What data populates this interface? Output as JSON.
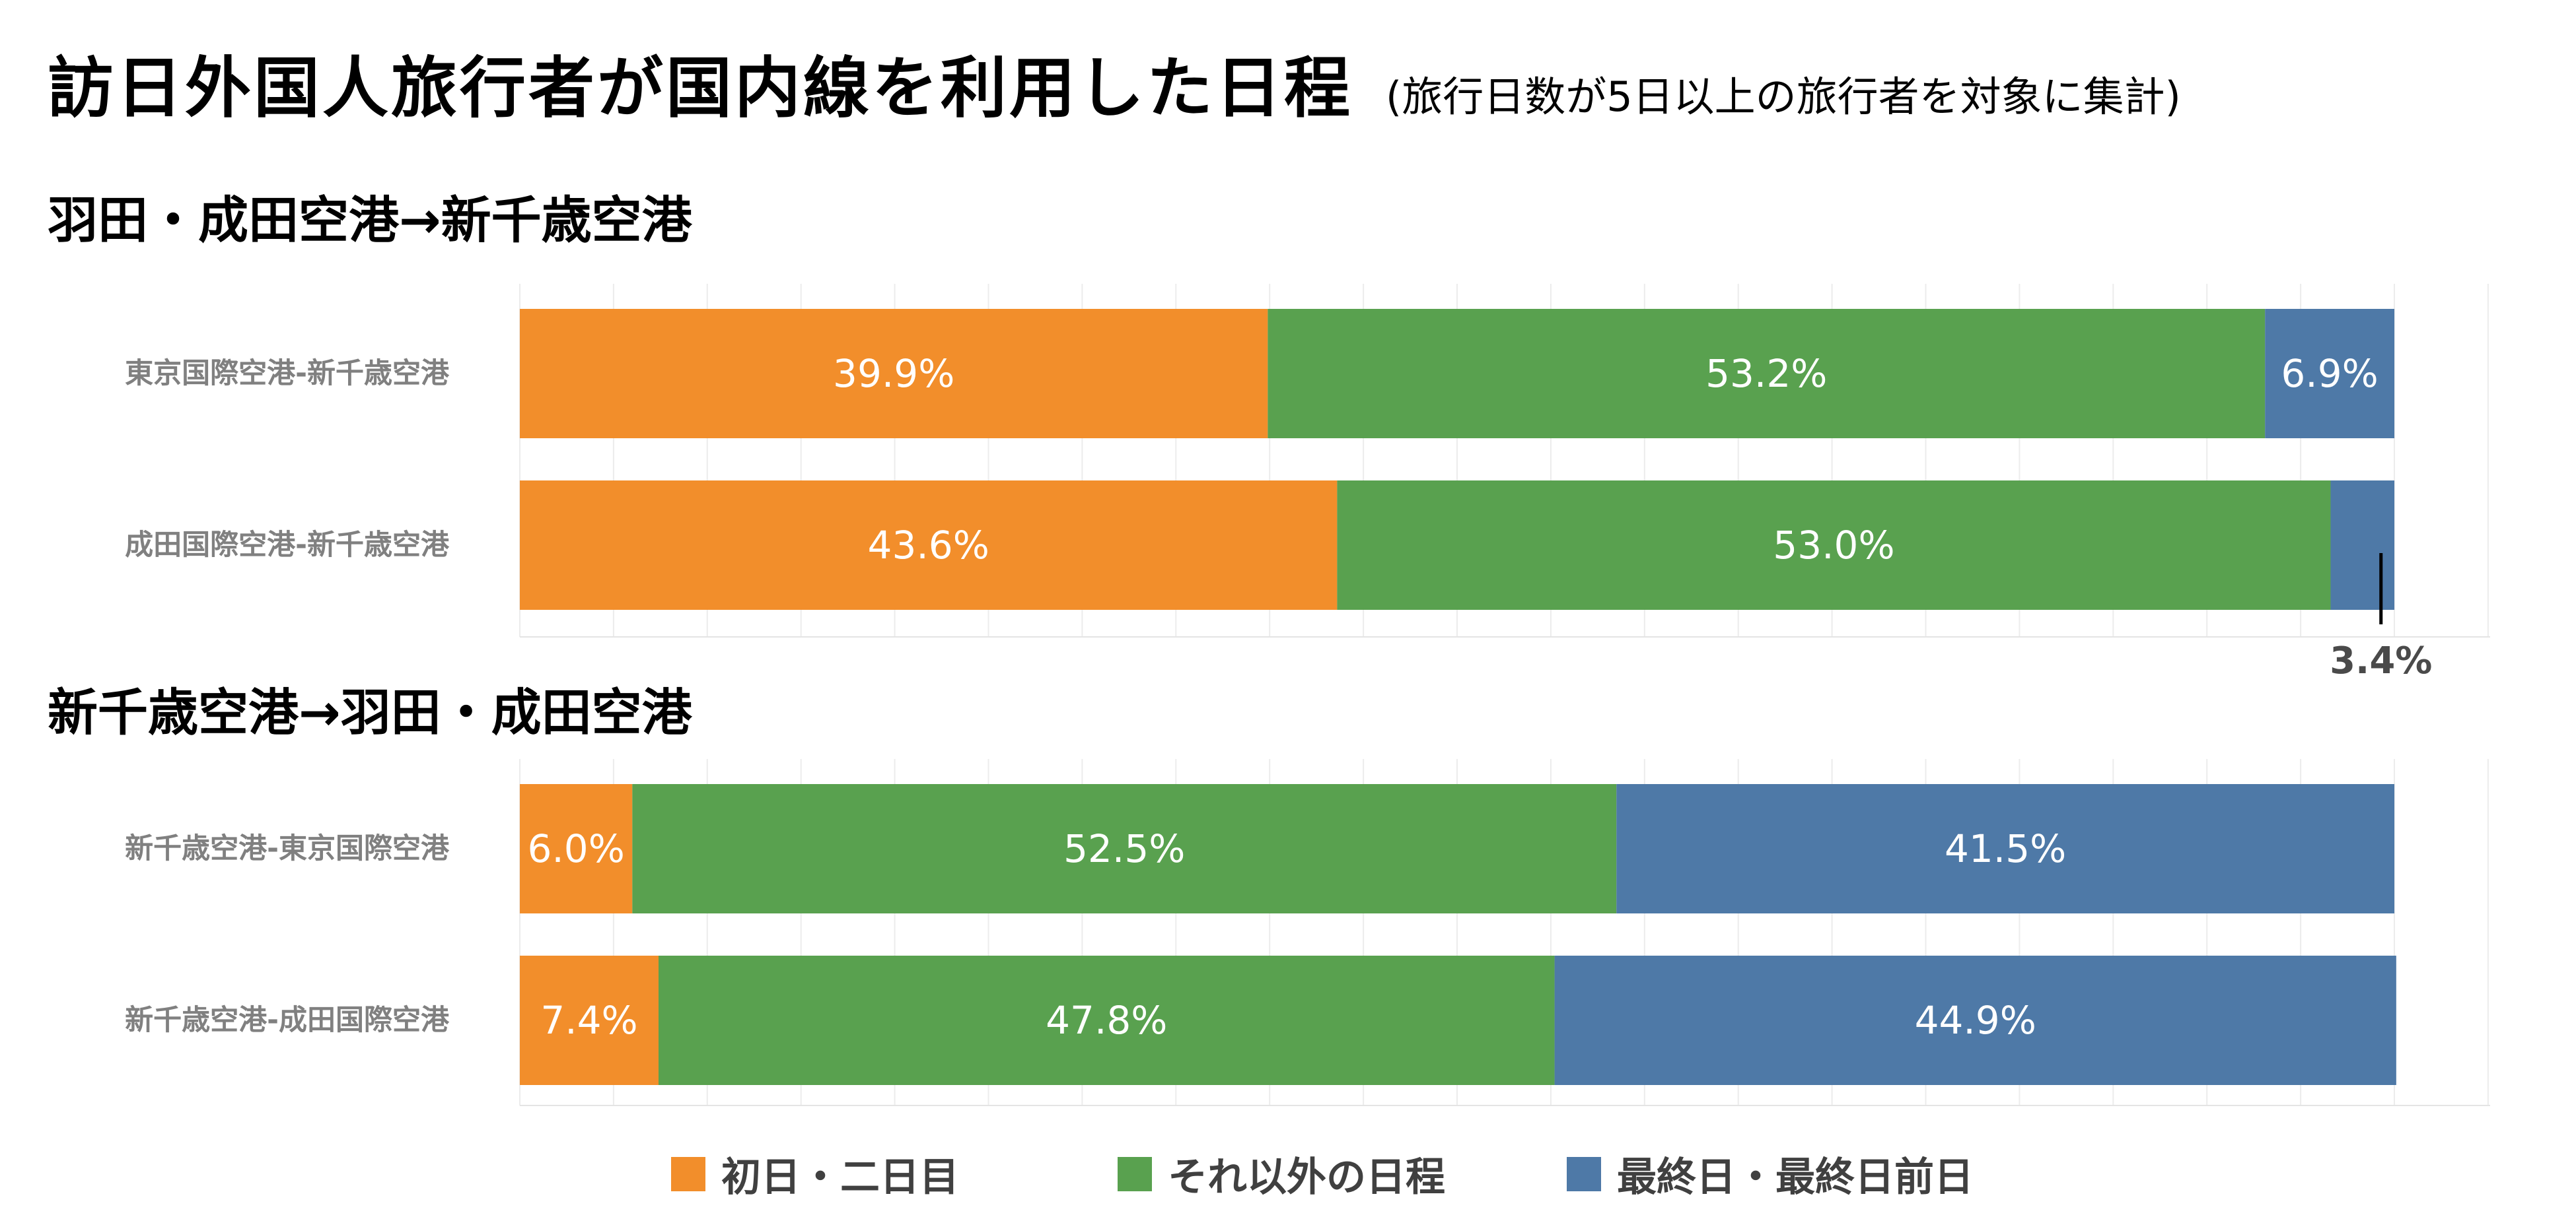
{
  "header": {
    "title": "訪日外国人旅行者が国内線を利用した日程",
    "subtitle": "(旅行日数が5日以上の旅行者を対象に集計)"
  },
  "sections": [
    {
      "title": "羽田・成田空港→新千歳空港"
    },
    {
      "title": "新千歳空港→羽田・成田空港"
    }
  ],
  "chart_data": {
    "type": "bar",
    "orientation": "horizontal",
    "stacked": true,
    "percent_stacked": true,
    "xlim": [
      0,
      100
    ],
    "grid": true,
    "legend_position": "bottom",
    "categories": [
      "東京国際空港-新千歳空港",
      "成田国際空港-新千歳空港",
      "新千歳空港-東京国際空港",
      "新千歳空港-成田国際空港"
    ],
    "category_section": [
      0,
      0,
      1,
      1
    ],
    "series": [
      {
        "name": "初日・二日目",
        "color": "#F28E2B",
        "values": [
          39.9,
          43.6,
          6.0,
          7.4
        ],
        "labels": [
          "39.9%",
          "43.6%",
          "6.0%",
          "7.4%"
        ]
      },
      {
        "name": "それ以外の日程",
        "color": "#59A14F",
        "values": [
          53.2,
          53.0,
          52.5,
          47.8
        ],
        "labels": [
          "53.2%",
          "53.0%",
          "52.5%",
          "47.8%"
        ]
      },
      {
        "name": "最終日・最終日前日",
        "color": "#4E79A7",
        "values": [
          6.9,
          3.4,
          41.5,
          44.9
        ],
        "labels": [
          "6.9%",
          "3.4%",
          "41.5%",
          "44.9%"
        ]
      }
    ],
    "callouts": [
      {
        "category_index": 1,
        "series_index": 2
      }
    ]
  }
}
